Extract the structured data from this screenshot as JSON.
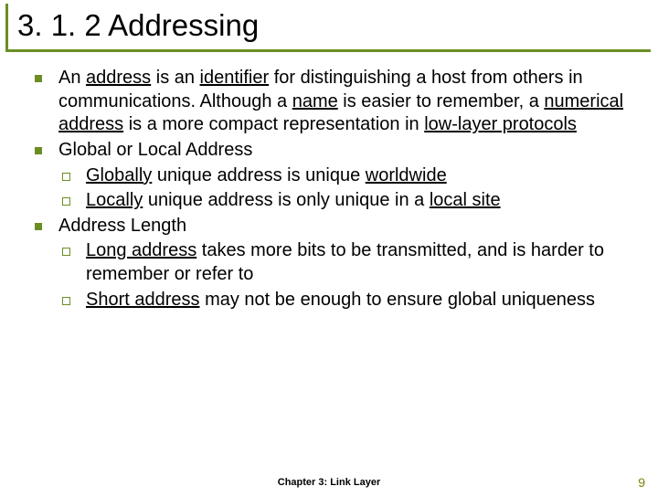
{
  "colors": {
    "accent": "#6b8e23",
    "bullet_fill": "#6b8e23",
    "text": "#000000",
    "page_num": "#808000"
  },
  "title": "3. 1. 2 Addressing",
  "bullets": {
    "b1_pre": "An ",
    "b1_u1": "address",
    "b1_mid1": " is an ",
    "b1_u2": "identifier",
    "b1_mid2": " for distinguishing a host from others in communications. Although a ",
    "b1_u3": "name",
    "b1_mid3": " is easier to remember, a ",
    "b1_u4": "numerical address",
    "b1_mid4": " is a more compact representation in ",
    "b1_u5": "low-layer protocols",
    "b2": "Global or Local Address",
    "b2a_u1": "Globally",
    "b2a_mid": " unique address is unique ",
    "b2a_u2": "worldwide",
    "b2b_u1": "Locally",
    "b2b_mid": " unique address is only unique in a ",
    "b2b_u2": "local site",
    "b3": "Address Length",
    "b3a_u1": "Long address",
    "b3a_rest": " takes more bits to be transmitted, and is harder to remember or refer to",
    "b3b_u1": "Short address",
    "b3b_rest": " may not be enough to ensure global uniqueness"
  },
  "footer": "Chapter 3: Link Layer",
  "page": "9"
}
